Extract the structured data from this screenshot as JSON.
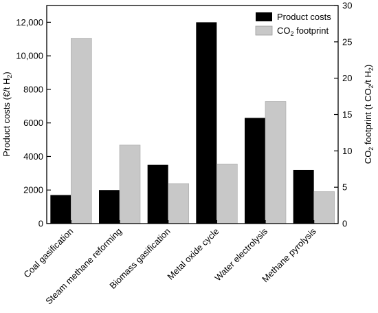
{
  "chart_data": {
    "type": "bar",
    "categories": [
      "Coal gasification",
      "Steam methane reforming",
      "Biomass gasification",
      "Metal oxide cycle",
      "Water electrolysis",
      "Methane pyrolysis"
    ],
    "series": [
      {
        "name": "Product costs",
        "axis": "left",
        "color": "#000000",
        "values": [
          1700,
          2000,
          3500,
          12000,
          6300,
          3200
        ]
      },
      {
        "name": "CO2 footprint",
        "axis": "right",
        "color": "#c8c8c8",
        "values": [
          25.5,
          10.8,
          5.5,
          8.2,
          16.8,
          4.4
        ]
      }
    ],
    "ylabel_left": {
      "main": "Product costs (€/t H",
      "sub": "2",
      "close": ")"
    },
    "ylabel_right": {
      "p1": "CO",
      "s1": "2",
      "p2": " footprint (t CO",
      "s2": "2",
      "p3": "/t H",
      "s3": "2",
      "p4": ")"
    },
    "ylim_left": [
      0,
      13000
    ],
    "ylim_right": [
      0,
      30
    ],
    "yticks_left": [
      0,
      2000,
      4000,
      6000,
      8000,
      10000,
      12000
    ],
    "yticks_left_labels": [
      "0",
      "2000",
      "4000",
      "6000",
      "8000",
      "10,000",
      "12,000"
    ],
    "yticks_right": [
      0,
      5,
      10,
      15,
      20,
      25,
      30
    ],
    "legend": {
      "position": "top-right",
      "entry1": "Product costs",
      "entry2_main": "CO",
      "entry2_sub": "2",
      "entry2_rest": " footprint"
    }
  }
}
